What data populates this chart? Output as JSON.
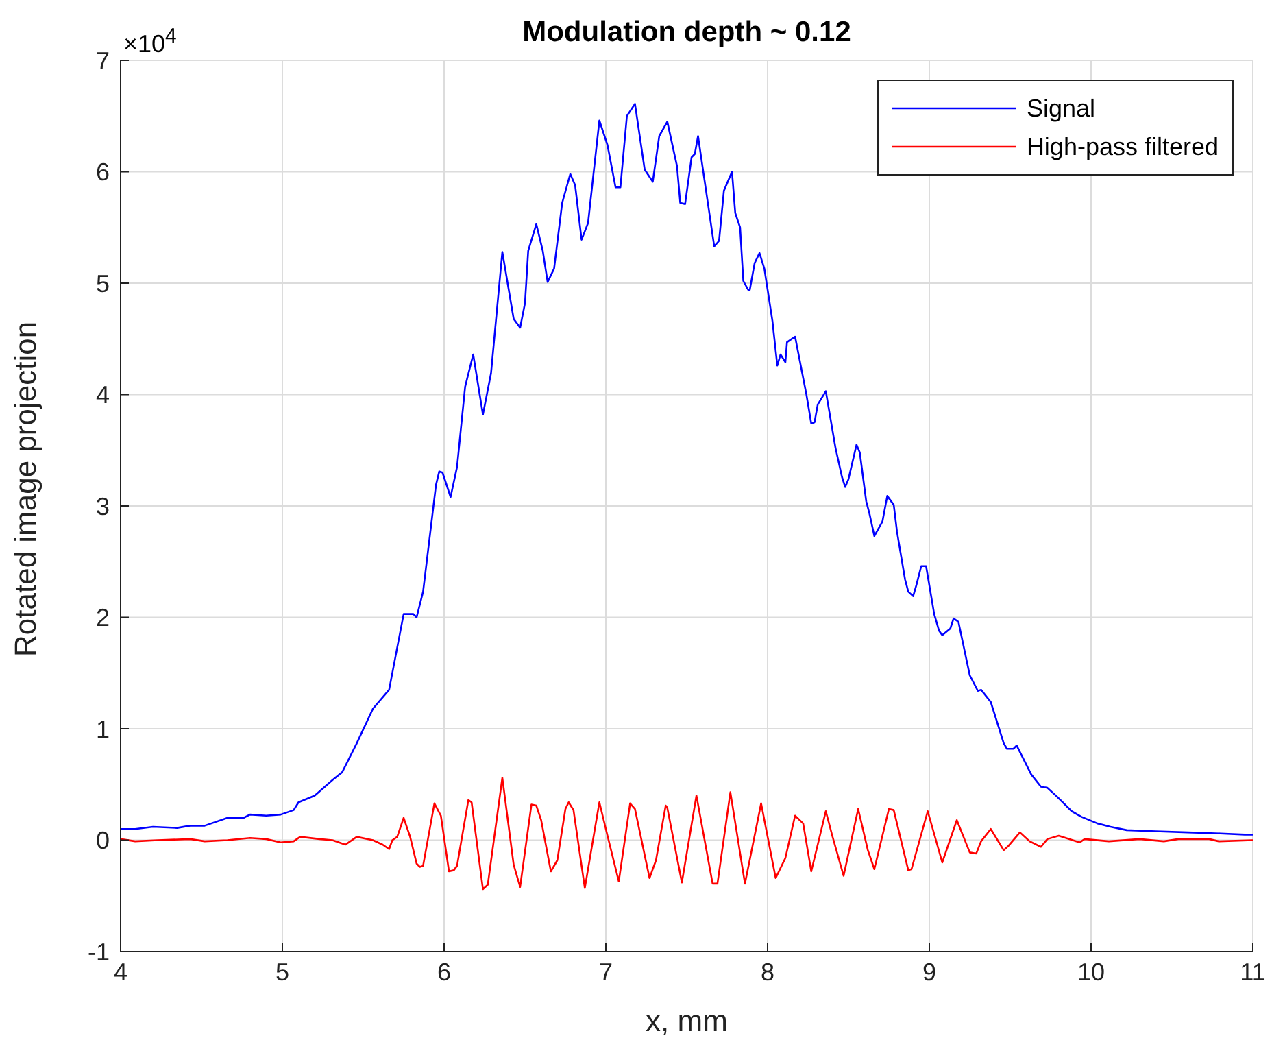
{
  "chart_data": {
    "type": "line",
    "title": "Modulation depth ~ 0.12",
    "xlabel": "x, mm",
    "ylabel": "Rotated image projection",
    "annotations": [
      "×10$^{4}$"
    ],
    "xlim": [
      4,
      11
    ],
    "xticks": [
      4,
      5,
      6,
      7,
      8,
      9,
      10,
      11
    ],
    "ylim": [
      -1,
      7
    ],
    "yticks": [
      -1,
      0,
      1,
      2,
      3,
      4,
      5,
      6,
      7
    ],
    "grid": true,
    "legend": "top right",
    "marker": "none",
    "line_style": "solid",
    "series": [
      {
        "name": "Signal",
        "color": "#0000ff",
        "x": [
          4.0,
          4.09,
          4.2,
          4.35,
          4.43,
          4.52,
          4.66,
          4.76,
          4.8,
          4.9,
          4.99,
          5.07,
          5.1,
          5.2,
          5.31,
          5.37,
          5.46,
          5.56,
          5.66,
          5.75,
          5.81,
          5.83,
          5.87,
          5.95,
          5.97,
          5.99,
          6.04,
          6.08,
          6.13,
          6.18,
          6.24,
          6.29,
          6.36,
          6.43,
          6.47,
          6.5,
          6.52,
          6.57,
          6.61,
          6.64,
          6.68,
          6.73,
          6.78,
          6.81,
          6.85,
          6.89,
          6.96,
          7.01,
          7.06,
          7.09,
          7.13,
          7.18,
          7.24,
          7.29,
          7.33,
          7.38,
          7.44,
          7.46,
          7.49,
          7.53,
          7.55,
          7.57,
          7.67,
          7.7,
          7.73,
          7.78,
          7.8,
          7.83,
          7.85,
          7.88,
          7.89,
          7.92,
          7.95,
          7.98,
          8.03,
          8.06,
          8.08,
          8.11,
          8.12,
          8.17,
          8.24,
          8.27,
          8.29,
          8.31,
          8.36,
          8.42,
          8.46,
          8.48,
          8.5,
          8.55,
          8.57,
          8.61,
          8.63,
          8.66,
          8.71,
          8.74,
          8.78,
          8.8,
          8.85,
          8.87,
          8.9,
          8.92,
          8.95,
          8.98,
          9.03,
          9.06,
          9.08,
          9.13,
          9.15,
          9.18,
          9.25,
          9.3,
          9.32,
          9.38,
          9.46,
          9.48,
          9.52,
          9.54,
          9.63,
          9.69,
          9.73,
          9.79,
          9.88,
          9.94,
          10.04,
          10.12,
          10.22,
          10.4,
          10.6,
          10.8,
          10.95,
          11.0
        ],
        "values": [
          0.1,
          0.1,
          0.12,
          0.11,
          0.13,
          0.13,
          0.2,
          0.2,
          0.23,
          0.22,
          0.23,
          0.27,
          0.34,
          0.4,
          0.54,
          0.61,
          0.87,
          1.18,
          1.35,
          2.03,
          2.03,
          2.0,
          2.23,
          3.19,
          3.31,
          3.3,
          3.08,
          3.35,
          4.07,
          4.36,
          3.82,
          4.19,
          5.28,
          4.68,
          4.6,
          4.82,
          5.29,
          5.53,
          5.29,
          5.01,
          5.13,
          5.72,
          5.98,
          5.88,
          5.39,
          5.54,
          6.46,
          6.24,
          5.86,
          5.86,
          6.5,
          6.61,
          6.02,
          5.91,
          6.32,
          6.45,
          6.05,
          5.72,
          5.71,
          6.13,
          6.16,
          6.32,
          5.33,
          5.38,
          5.83,
          6.0,
          5.63,
          5.5,
          5.02,
          4.94,
          4.94,
          5.18,
          5.27,
          5.13,
          4.66,
          4.26,
          4.36,
          4.29,
          4.47,
          4.52,
          4.0,
          3.74,
          3.75,
          3.91,
          4.03,
          3.52,
          3.26,
          3.17,
          3.24,
          3.55,
          3.48,
          3.04,
          2.93,
          2.73,
          2.86,
          3.09,
          3.01,
          2.77,
          2.34,
          2.23,
          2.19,
          2.29,
          2.46,
          2.46,
          2.03,
          1.88,
          1.84,
          1.9,
          1.99,
          1.96,
          1.48,
          1.34,
          1.35,
          1.24,
          0.87,
          0.82,
          0.82,
          0.85,
          0.59,
          0.48,
          0.47,
          0.39,
          0.26,
          0.21,
          0.15,
          0.12,
          0.09,
          0.08,
          0.07,
          0.06,
          0.05,
          0.05
        ]
      },
      {
        "name": "High-pass filtered",
        "color": "#ff0000",
        "x": [
          4.0,
          4.09,
          4.23,
          4.43,
          4.52,
          4.66,
          4.8,
          4.9,
          4.99,
          5.07,
          5.11,
          5.23,
          5.31,
          5.39,
          5.46,
          5.56,
          5.62,
          5.66,
          5.68,
          5.71,
          5.75,
          5.79,
          5.83,
          5.85,
          5.87,
          5.94,
          5.98,
          6.03,
          6.06,
          6.08,
          6.15,
          6.17,
          6.24,
          6.27,
          6.36,
          6.43,
          6.47,
          6.54,
          6.57,
          6.6,
          6.66,
          6.7,
          6.75,
          6.77,
          6.8,
          6.87,
          6.96,
          7.0,
          7.08,
          7.15,
          7.18,
          7.27,
          7.31,
          7.37,
          7.38,
          7.47,
          7.56,
          7.66,
          7.69,
          7.77,
          7.86,
          7.96,
          8.05,
          8.11,
          8.17,
          8.22,
          8.27,
          8.36,
          8.4,
          8.47,
          8.56,
          8.62,
          8.66,
          8.75,
          8.78,
          8.87,
          8.89,
          8.99,
          9.08,
          9.17,
          9.25,
          9.29,
          9.32,
          9.38,
          9.46,
          9.49,
          9.56,
          9.62,
          9.69,
          9.73,
          9.8,
          9.93,
          9.96,
          10.11,
          10.3,
          10.45,
          10.54,
          10.73,
          10.79,
          11.0
        ],
        "values": [
          0.01,
          -0.01,
          0.0,
          0.01,
          -0.01,
          0.0,
          0.02,
          0.01,
          -0.02,
          -0.01,
          0.03,
          0.01,
          0.0,
          -0.04,
          0.03,
          0.0,
          -0.04,
          -0.08,
          0.0,
          0.03,
          0.2,
          0.03,
          -0.21,
          -0.24,
          -0.23,
          0.33,
          0.22,
          -0.28,
          -0.27,
          -0.23,
          0.36,
          0.34,
          -0.44,
          -0.4,
          0.56,
          -0.22,
          -0.42,
          0.32,
          0.31,
          0.18,
          -0.28,
          -0.18,
          0.28,
          0.34,
          0.27,
          -0.43,
          0.34,
          0.1,
          -0.37,
          0.33,
          0.28,
          -0.34,
          -0.18,
          0.31,
          0.29,
          -0.38,
          0.4,
          -0.39,
          -0.39,
          0.43,
          -0.39,
          0.33,
          -0.34,
          -0.16,
          0.22,
          0.15,
          -0.28,
          0.26,
          0.04,
          -0.32,
          0.28,
          -0.09,
          -0.26,
          0.28,
          0.27,
          -0.27,
          -0.26,
          0.26,
          -0.2,
          0.18,
          -0.11,
          -0.12,
          -0.01,
          0.1,
          -0.09,
          -0.05,
          0.07,
          -0.01,
          -0.06,
          0.01,
          0.04,
          -0.02,
          0.01,
          -0.01,
          0.01,
          -0.01,
          0.01,
          0.01,
          -0.01,
          0.0
        ]
      }
    ]
  }
}
